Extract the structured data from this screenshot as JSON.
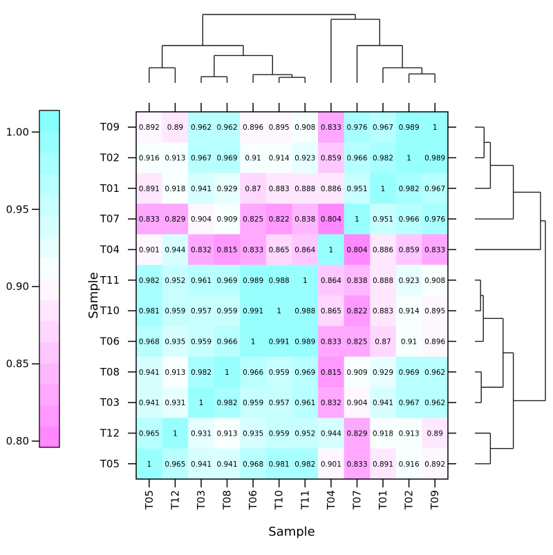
{
  "figure": {
    "background": "#ffffff"
  },
  "chart_data": {
    "type": "heatmap",
    "title": "",
    "xlabel": "Sample",
    "ylabel": "Sample",
    "col_order": [
      "T05",
      "T12",
      "T03",
      "T08",
      "T06",
      "T10",
      "T11",
      "T04",
      "T07",
      "T01",
      "T02",
      "T09"
    ],
    "row_order": [
      "T09",
      "T02",
      "T01",
      "T07",
      "T04",
      "T11",
      "T10",
      "T06",
      "T08",
      "T03",
      "T12",
      "T05"
    ],
    "values": [
      [
        0.892,
        0.89,
        0.962,
        0.962,
        0.896,
        0.895,
        0.908,
        0.833,
        0.976,
        0.967,
        0.989,
        1
      ],
      [
        0.916,
        0.913,
        0.967,
        0.969,
        0.91,
        0.914,
        0.923,
        0.859,
        0.966,
        0.982,
        1,
        0.989
      ],
      [
        0.891,
        0.918,
        0.941,
        0.929,
        0.87,
        0.883,
        0.888,
        0.886,
        0.951,
        1,
        0.982,
        0.967
      ],
      [
        0.833,
        0.829,
        0.904,
        0.909,
        0.825,
        0.822,
        0.838,
        0.804,
        1,
        0.951,
        0.966,
        0.976
      ],
      [
        0.901,
        0.944,
        0.832,
        0.815,
        0.833,
        0.865,
        0.864,
        1,
        0.804,
        0.886,
        0.859,
        0.833
      ],
      [
        0.982,
        0.952,
        0.961,
        0.969,
        0.989,
        0.988,
        1,
        0.864,
        0.838,
        0.888,
        0.923,
        0.908
      ],
      [
        0.981,
        0.959,
        0.957,
        0.959,
        0.991,
        1,
        0.988,
        0.865,
        0.822,
        0.883,
        0.914,
        0.895
      ],
      [
        0.968,
        0.935,
        0.959,
        0.966,
        1,
        0.991,
        0.989,
        0.833,
        0.825,
        0.87,
        0.91,
        0.896
      ],
      [
        0.941,
        0.913,
        0.982,
        1,
        0.966,
        0.959,
        0.969,
        0.815,
        0.909,
        0.929,
        0.969,
        0.962
      ],
      [
        0.941,
        0.931,
        1,
        0.982,
        0.959,
        0.957,
        0.961,
        0.832,
        0.904,
        0.941,
        0.967,
        0.962
      ],
      [
        0.965,
        1,
        0.931,
        0.913,
        0.935,
        0.959,
        0.952,
        0.944,
        0.829,
        0.918,
        0.913,
        0.89
      ],
      [
        1,
        0.965,
        0.941,
        0.941,
        0.968,
        0.981,
        0.982,
        0.901,
        0.833,
        0.891,
        0.916,
        0.892
      ]
    ],
    "color_scale": {
      "palette": "cyan-white-magenta",
      "cyan_end": "#80FFFF",
      "white_mid": "#FFFFFF",
      "magenta_end": "#FF80FF",
      "min": 0.796,
      "max": 1.014,
      "levels": 16,
      "legend_ticks": [
        "1.00",
        "0.95",
        "0.90",
        "0.85",
        "0.80"
      ],
      "legend_tick_values": [
        1.0,
        0.95,
        0.9,
        0.85,
        0.8
      ]
    },
    "dendrogram": {
      "merges": [
        {
          "a": "T05",
          "b": "T12",
          "h": 0.22
        },
        {
          "a": "T03",
          "b": "T08",
          "h": 0.09
        },
        {
          "a": "T10",
          "b": "T11",
          "h": 0.08
        },
        {
          "a": "T06",
          "b": "@2",
          "h": 0.12
        },
        {
          "a": "@1",
          "b": "@3",
          "h": 0.4
        },
        {
          "a": "@0",
          "b": "@4",
          "h": 0.545
        },
        {
          "a": "T02",
          "b": "T09",
          "h": 0.13
        },
        {
          "a": "T01",
          "b": "@6",
          "h": 0.22
        },
        {
          "a": "T07",
          "b": "@7",
          "h": 0.545
        },
        {
          "a": "T04",
          "b": "@8",
          "h": 0.93
        },
        {
          "a": "@5",
          "b": "@9",
          "h": 1.0
        }
      ]
    }
  }
}
